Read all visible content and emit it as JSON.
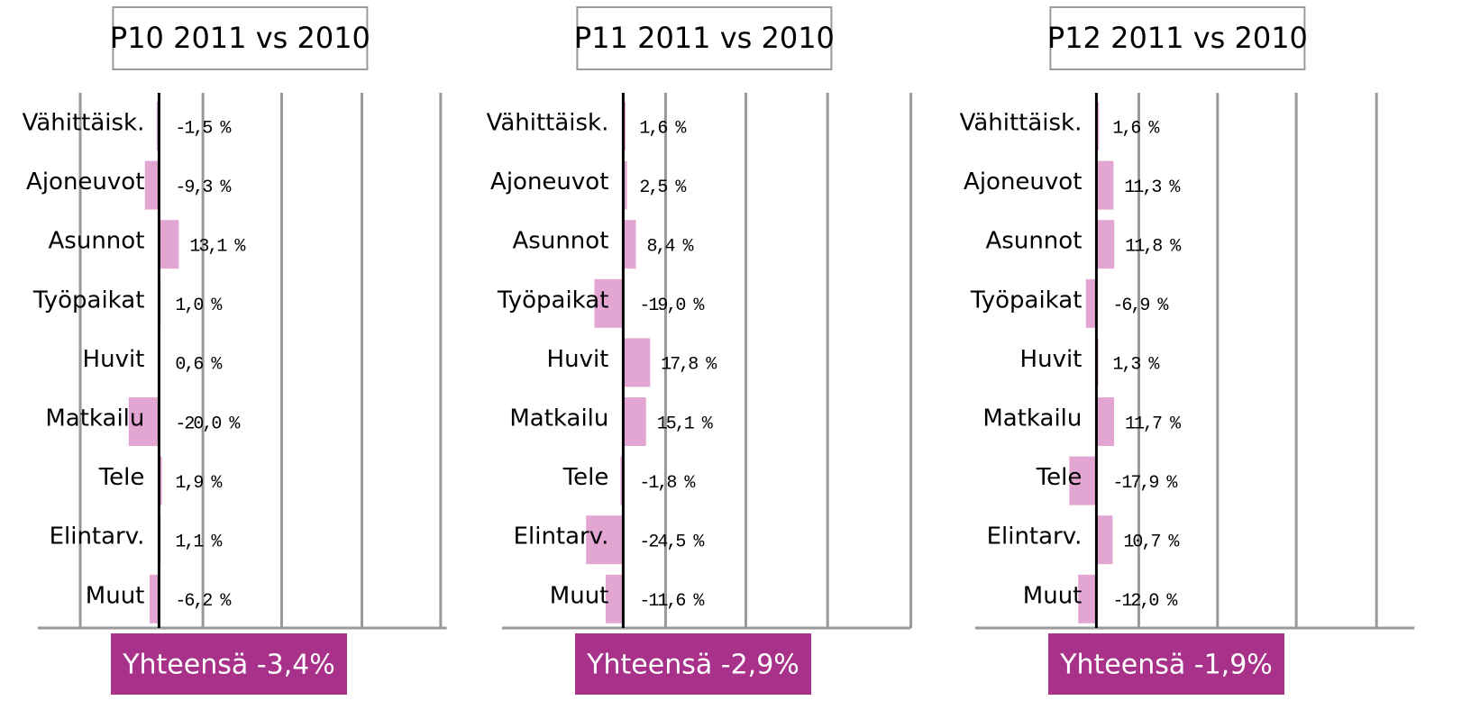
{
  "chart_data": [
    {
      "type": "barh",
      "title": "P10 2011 vs 2010",
      "categories": [
        "Vähittäisk.",
        "Ajoneuvot",
        "Asunnot",
        "Työpaikat",
        "Huvit",
        "Matkailu",
        "Tele",
        "Elintarv.",
        "Muut"
      ],
      "values": [
        -1.5,
        -9.3,
        13.1,
        1.0,
        0.6,
        -20.0,
        1.9,
        1.1,
        -6.2
      ],
      "value_labels": [
        "-1,5 %",
        "-9,3 %",
        "13,1 %",
        "1,0 %",
        "0,6 %",
        "-20,0 %",
        "1,9 %",
        "1,1 %",
        "-6,2 %"
      ],
      "color": "#e3a6d3",
      "xlim": [
        -80,
        190
      ],
      "xticks": [
        -52,
        29,
        81,
        134,
        186
      ],
      "grid": true,
      "annotation": "Yhteensä -3,4%"
    },
    {
      "type": "barh",
      "title": "P11 2011 vs 2010",
      "categories": [
        "Vähittäisk.",
        "Ajoneuvot",
        "Asunnot",
        "Työpaikat",
        "Huvit",
        "Matkailu",
        "Tele",
        "Elintarv.",
        "Muut"
      ],
      "values": [
        1.6,
        2.5,
        8.4,
        -19.0,
        17.8,
        15.1,
        -1.8,
        -24.5,
        -11.6
      ],
      "value_labels": [
        "1,6 %",
        "2,5 %",
        "8,4 %",
        "-19,0 %",
        "17,8 %",
        "15,1 %",
        "-1,8 %",
        "-24,5 %",
        "-11,6 %"
      ],
      "color": "#e3a6d3",
      "xlim": [
        -80,
        190
      ],
      "xticks": [
        28,
        81,
        135,
        190
      ],
      "grid": true,
      "annotation": "Yhteensä -2,9%"
    },
    {
      "type": "barh",
      "title": "P12 2011 vs 2010",
      "categories": [
        "Vähittäisk.",
        "Ajoneuvot",
        "Asunnot",
        "Työpaikat",
        "Huvit",
        "Matkailu",
        "Tele",
        "Elintarv.",
        "Muut"
      ],
      "values": [
        1.6,
        11.3,
        11.8,
        -6.9,
        1.3,
        11.7,
        -17.9,
        10.7,
        -12.0
      ],
      "value_labels": [
        "1,6 %",
        "11,3 %",
        "11,8 %",
        "-6,9 %",
        "1,3 %",
        "11,7 %",
        "-17,9 %",
        "10,7 %",
        "-12,0 %"
      ],
      "color": "#e3a6d3",
      "xlim": [
        -80,
        210
      ],
      "xticks": [
        28,
        80,
        132,
        185
      ],
      "grid": true,
      "annotation": "Yhteensä -1,9%"
    }
  ]
}
